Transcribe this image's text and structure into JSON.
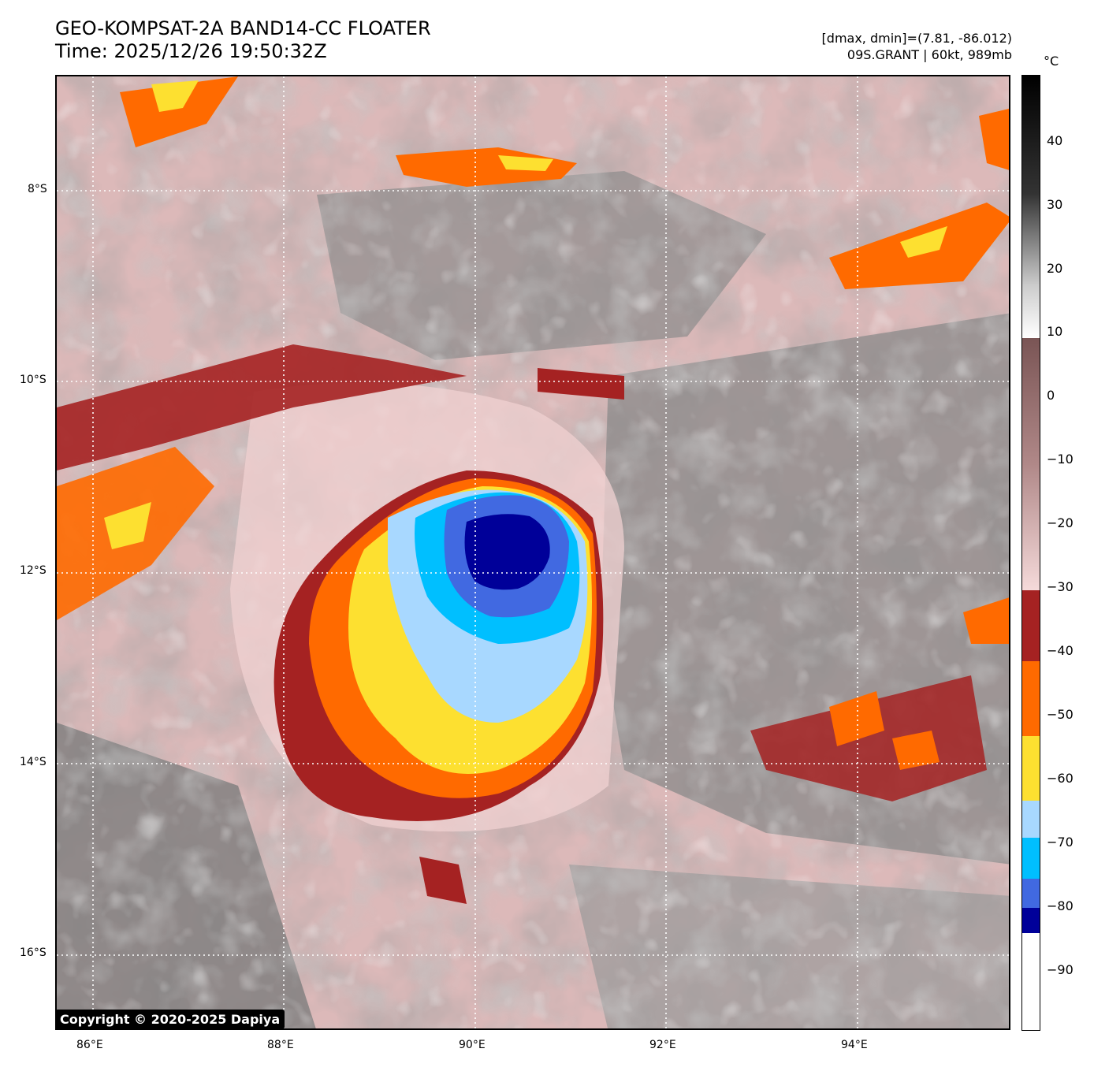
{
  "title": {
    "line1": "GEO-KOMPSAT-2A BAND14-CC FLOATER",
    "line2": "Time: 2025/12/26 19:50:32Z"
  },
  "info": {
    "line1": "[dmax, dmin]=(7.81, -86.012)",
    "line2": "09S.GRANT | 60kt, 989mb"
  },
  "axes": {
    "lat_labels": [
      "8°S",
      "10°S",
      "12°S",
      "14°S",
      "16°S"
    ],
    "lon_labels": [
      "86°E",
      "88°E",
      "90°E",
      "92°E",
      "94°E"
    ]
  },
  "colorbar": {
    "unit": "°C",
    "labels": [
      "40",
      "30",
      "20",
      "10",
      "0",
      "−10",
      "−20",
      "−30",
      "−40",
      "−50",
      "−60",
      "−70",
      "−80",
      "−90"
    ]
  },
  "copyright": "Copyright © 2020-2025 Dapiya",
  "colors": {
    "cold_ring": "#a52222",
    "orange": "#ff6a00",
    "yellow": "#fde030",
    "light_blue": "#a8d8ff",
    "cyan": "#00bfff",
    "royal_blue": "#4169e1",
    "navy": "#000099",
    "pink": "#f0d0d0",
    "mauve": "#8c6666",
    "gray": "#8a8a8a"
  }
}
